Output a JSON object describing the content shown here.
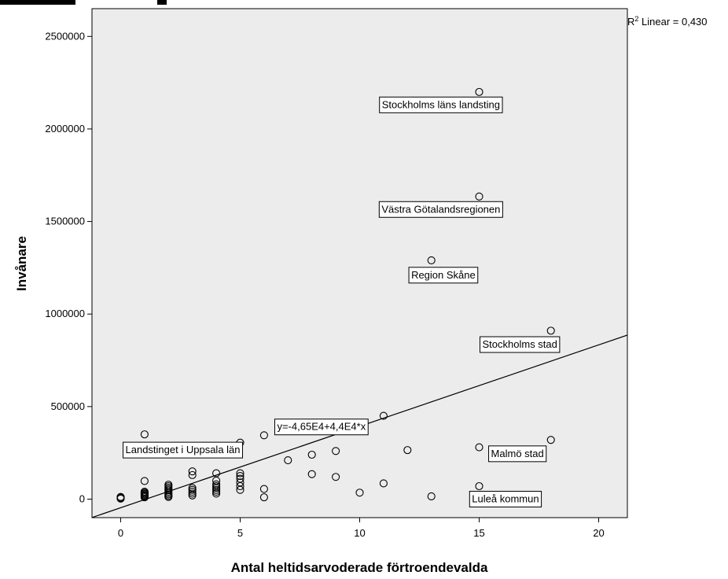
{
  "chart_data": {
    "type": "scatter",
    "title": "",
    "xlabel": "Antal heltidsarvoderade förtroendevalda",
    "ylabel": "Invånare",
    "xlim": [
      -1.2,
      21.2
    ],
    "ylim": [
      -100000,
      2650000
    ],
    "x_ticks": [
      0,
      5,
      10,
      15,
      20
    ],
    "y_ticks": [
      0,
      500000,
      1000000,
      1500000,
      2000000,
      2500000
    ],
    "grid": false,
    "plot_background": "#ececec",
    "point_color": "#000000",
    "fit_line": {
      "type": "linear",
      "intercept": -46500,
      "slope": 44000,
      "equation_label": "y=-4,65E4+4,4E4*x",
      "equation_label_anchor": [
        8.4,
        390000
      ],
      "r2_label_prefix": "R",
      "r2_label_rest": " Linear = 0,430"
    },
    "points": [
      [
        0,
        3000
      ],
      [
        0,
        6000
      ],
      [
        0,
        9000
      ],
      [
        0,
        12000
      ],
      [
        1,
        10000
      ],
      [
        1,
        15000
      ],
      [
        1,
        20000
      ],
      [
        1,
        25000
      ],
      [
        1,
        30000
      ],
      [
        1,
        35000
      ],
      [
        1,
        40000
      ],
      [
        1,
        98000
      ],
      [
        1,
        350000
      ],
      [
        2,
        12000
      ],
      [
        2,
        18000
      ],
      [
        2,
        25000
      ],
      [
        2,
        32000
      ],
      [
        2,
        40000
      ],
      [
        2,
        48000
      ],
      [
        2,
        55000
      ],
      [
        2,
        62000
      ],
      [
        2,
        70000
      ],
      [
        2,
        78000
      ],
      [
        3,
        20000
      ],
      [
        3,
        30000
      ],
      [
        3,
        40000
      ],
      [
        3,
        50000
      ],
      [
        3,
        60000
      ],
      [
        3,
        130000
      ],
      [
        3,
        150000
      ],
      [
        4,
        30000
      ],
      [
        4,
        40000
      ],
      [
        4,
        50000
      ],
      [
        4,
        60000
      ],
      [
        4,
        70000
      ],
      [
        4,
        80000
      ],
      [
        4,
        100000
      ],
      [
        4,
        140000
      ],
      [
        5,
        50000
      ],
      [
        5,
        70000
      ],
      [
        5,
        90000
      ],
      [
        5,
        110000
      ],
      [
        5,
        125000
      ],
      [
        5,
        140000
      ],
      [
        5,
        305000
      ],
      [
        6,
        10000
      ],
      [
        6,
        55000
      ],
      [
        6,
        345000
      ],
      [
        7,
        210000
      ],
      [
        8,
        135000
      ],
      [
        8,
        240000
      ],
      [
        9,
        120000
      ],
      [
        9,
        260000
      ],
      [
        10,
        35000
      ],
      [
        11,
        85000
      ],
      [
        11,
        450000
      ],
      [
        12,
        265000
      ],
      [
        13,
        15000
      ],
      [
        13,
        1290000
      ],
      [
        15,
        70000
      ],
      [
        15,
        280000
      ],
      [
        15,
        1635000
      ],
      [
        15,
        2200000
      ],
      [
        18,
        320000
      ],
      [
        18,
        910000
      ]
    ],
    "annotations": [
      {
        "text": "Stockholms läns landsting",
        "x": 15,
        "y": 2200000,
        "box_anchor": [
          13.4,
          2130000
        ],
        "align": "middle"
      },
      {
        "text": "Västra Götalandsregionen",
        "x": 15,
        "y": 1635000,
        "box_anchor": [
          13.4,
          1565000
        ],
        "align": "middle"
      },
      {
        "text": "Region Skåne",
        "x": 13,
        "y": 1290000,
        "box_anchor": [
          13.5,
          1210000
        ],
        "align": "middle"
      },
      {
        "text": "Stockholms stad",
        "x": 18,
        "y": 910000,
        "box_anchor": [
          16.7,
          835000
        ],
        "align": "middle"
      },
      {
        "text": "Landstinget i Uppsala län",
        "x": 1,
        "y": 350000,
        "box_anchor": [
          2.6,
          265000
        ],
        "align": "middle"
      },
      {
        "text": "Malmö stad",
        "x": 18,
        "y": 320000,
        "box_anchor": [
          16.6,
          245000
        ],
        "align": "middle"
      },
      {
        "text": "Luleå kommun",
        "x": 15,
        "y": 70000,
        "box_anchor": [
          16.1,
          0
        ],
        "align": "middle"
      }
    ]
  }
}
